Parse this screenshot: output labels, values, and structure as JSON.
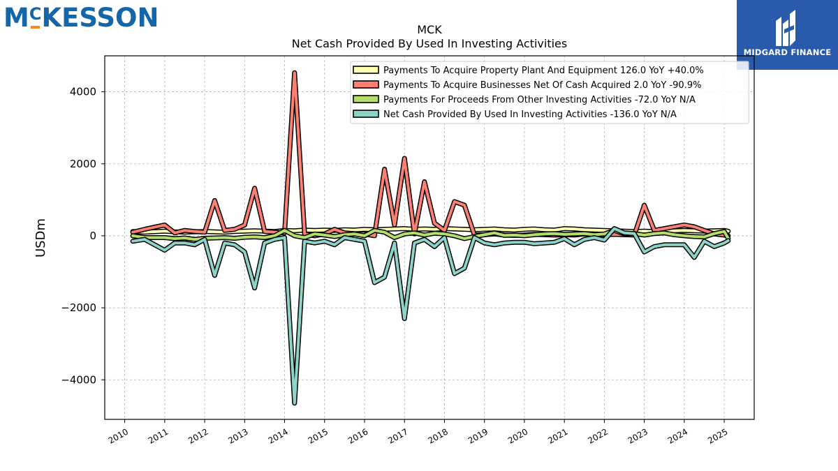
{
  "brand": {
    "name_main": "KESSON",
    "name_m": "M",
    "name_c": "C"
  },
  "badge": {
    "text": "MIDGARD FINANCE",
    "color": "#2a5aab"
  },
  "chart_data": {
    "type": "line",
    "title": "MCK",
    "subtitle": "Net Cash Provided By Used In Investing Activities",
    "ylabel": "USDm",
    "xlabel": "",
    "ylim": [
      -5100,
      5000
    ],
    "xlim": [
      2009.5,
      2025.75
    ],
    "yticks": [
      4000,
      2000,
      0,
      -2000,
      -4000
    ],
    "ytick_labels": [
      "4000",
      "2000",
      "0",
      "−2000",
      "−4000"
    ],
    "xticks": [
      2010,
      2011,
      2012,
      2013,
      2014,
      2015,
      2016,
      2017,
      2018,
      2019,
      2020,
      2021,
      2022,
      2023,
      2024,
      2025
    ],
    "xtick_labels": [
      "2010",
      "2011",
      "2012",
      "2013",
      "2014",
      "2015",
      "2016",
      "2017",
      "2018",
      "2019",
      "2020",
      "2021",
      "2022",
      "2023",
      "2024",
      "2025"
    ],
    "grid": true,
    "legend_position": "top-right",
    "x": [
      2010.2,
      2010.5,
      2011.0,
      2011.25,
      2011.5,
      2011.75,
      2012.0,
      2012.25,
      2012.5,
      2012.75,
      2013.0,
      2013.25,
      2013.5,
      2013.75,
      2014.0,
      2014.25,
      2014.5,
      2014.75,
      2015.0,
      2015.25,
      2015.5,
      2015.75,
      2016.0,
      2016.25,
      2016.5,
      2016.75,
      2017.0,
      2017.25,
      2017.5,
      2017.75,
      2018.0,
      2018.25,
      2018.5,
      2018.75,
      2019.0,
      2019.25,
      2019.5,
      2019.75,
      2020.0,
      2020.25,
      2020.5,
      2020.75,
      2021.0,
      2021.25,
      2021.5,
      2021.75,
      2022.0,
      2022.25,
      2022.5,
      2022.75,
      2023.0,
      2023.25,
      2023.5,
      2023.75,
      2024.0,
      2024.25,
      2024.5,
      2024.75,
      2025.0,
      2025.1
    ],
    "series": [
      {
        "name": "Payments To Acquire Property Plant And Equipment",
        "legend_label": "Payments To Acquire Property Plant And Equipment  126.0 YoY +40.0%",
        "color": "#ffffb3",
        "values": [
          120,
          100,
          130,
          110,
          100,
          110,
          120,
          110,
          100,
          120,
          130,
          140,
          130,
          120,
          150,
          140,
          160,
          150,
          160,
          150,
          170,
          160,
          180,
          170,
          180,
          190,
          200,
          180,
          190,
          180,
          200,
          190,
          180,
          170,
          180,
          190,
          170,
          160,
          180,
          190,
          170,
          160,
          200,
          190,
          170,
          160,
          150,
          140,
          130,
          120,
          130,
          120,
          150,
          140,
          150,
          140,
          130,
          140,
          150,
          126
        ]
      },
      {
        "name": "Payments To Acquire Businesses Net Of Cash Acquired",
        "legend_label": "Payments To Acquire Businesses Net Of Cash Acquired  2.0 YoY -90.9%",
        "color": "#fb8072",
        "values": [
          100,
          180,
          300,
          80,
          150,
          120,
          100,
          980,
          150,
          180,
          300,
          1320,
          120,
          100,
          80,
          4530,
          50,
          0,
          50,
          180,
          80,
          60,
          50,
          0,
          1850,
          300,
          2150,
          50,
          1500,
          350,
          150,
          950,
          850,
          20,
          30,
          50,
          20,
          10,
          20,
          40,
          30,
          20,
          30,
          20,
          50,
          40,
          30,
          40,
          30,
          20,
          850,
          150,
          200,
          250,
          300,
          250,
          150,
          50,
          20,
          2
        ]
      },
      {
        "name": "Payments For Proceeds From Other Investing Activities",
        "legend_label": "Payments For Proceeds From Other Investing Activities  -72.0 YoY N/A",
        "color": "#b3de69",
        "values": [
          0,
          -50,
          -50,
          -80,
          -60,
          -100,
          -70,
          -60,
          -50,
          -70,
          -40,
          -30,
          -50,
          0,
          150,
          0,
          -50,
          50,
          20,
          -20,
          30,
          50,
          0,
          150,
          100,
          -50,
          50,
          80,
          20,
          70,
          50,
          0,
          -80,
          -20,
          30,
          80,
          10,
          20,
          0,
          30,
          50,
          60,
          40,
          50,
          60,
          30,
          50,
          150,
          50,
          60,
          20,
          60,
          80,
          30,
          0,
          -20,
          -30,
          60,
          120,
          -72
        ]
      },
      {
        "name": "Net Cash Provided By Used In Investing Activities",
        "legend_label": "Net Cash Provided By Used In Investing Activities  -136.0 YoY N/A",
        "color": "#8dd3c7",
        "values": [
          -150,
          -100,
          -400,
          -200,
          -200,
          -250,
          -100,
          -1100,
          -200,
          -250,
          -450,
          -1450,
          -200,
          -100,
          -50,
          -4650,
          -150,
          -200,
          -150,
          -250,
          -50,
          -100,
          -150,
          -1300,
          -1150,
          -200,
          -2300,
          -200,
          -100,
          -300,
          -50,
          -1050,
          -900,
          -50,
          -200,
          -250,
          -200,
          -180,
          -180,
          -220,
          -200,
          -180,
          -80,
          -250,
          -100,
          -50,
          -120,
          200,
          80,
          60,
          -450,
          -300,
          -250,
          -250,
          -250,
          -600,
          -150,
          -300,
          -200,
          -136
        ]
      }
    ]
  }
}
